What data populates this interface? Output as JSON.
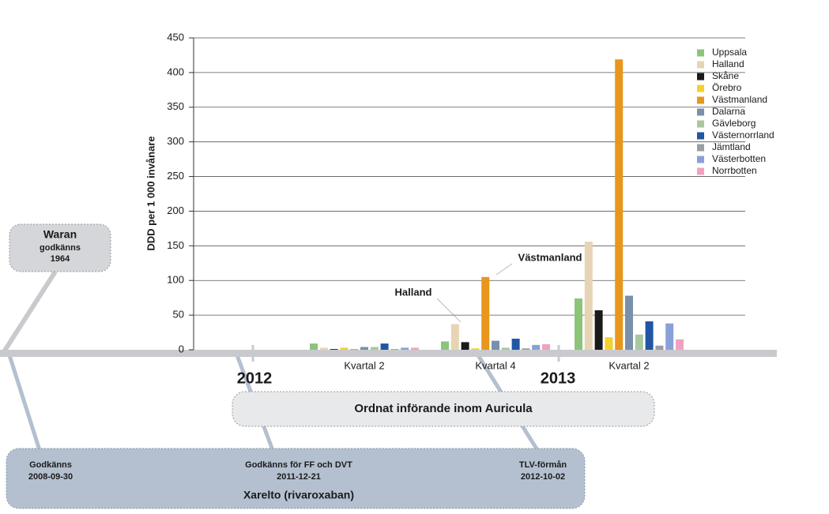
{
  "chart_data": {
    "type": "bar",
    "y_label": "DDD per 1 000 invånare",
    "categories": [
      "Kvartal 2",
      "Kvartal 4",
      "Kvartal 2"
    ],
    "series": [
      {
        "name": "Uppsala",
        "color": "#8cc47a",
        "values": [
          9,
          12,
          74
        ]
      },
      {
        "name": "Halland",
        "color": "#e6d4b4",
        "values": [
          3,
          37,
          156
        ]
      },
      {
        "name": "Skåne",
        "color": "#1a1a1a",
        "values": [
          1,
          11,
          57
        ]
      },
      {
        "name": "Örebro",
        "color": "#f4d030",
        "values": [
          3,
          2,
          18
        ]
      },
      {
        "name": "Västmanland",
        "color": "#e8961c",
        "values": [
          1,
          105,
          419
        ]
      },
      {
        "name": "Dalarna",
        "color": "#7990aa",
        "values": [
          4,
          13,
          78
        ]
      },
      {
        "name": "Gävleborg",
        "color": "#a8c8a0",
        "values": [
          4,
          3,
          22
        ]
      },
      {
        "name": "Västernorrland",
        "color": "#2156a5",
        "values": [
          9,
          16,
          41
        ]
      },
      {
        "name": "Jämtland",
        "color": "#9a9ea4",
        "values": [
          1,
          2,
          6
        ]
      },
      {
        "name": "Västerbotten",
        "color": "#8aa0d8",
        "values": [
          3,
          7,
          38
        ]
      },
      {
        "name": "Norrbotten",
        "color": "#f4a0c0",
        "values": [
          3,
          8,
          15
        ]
      }
    ],
    "ylim": [
      0,
      450
    ],
    "yticks": [
      0,
      50,
      100,
      150,
      200,
      250,
      300,
      350,
      400,
      450
    ],
    "grid": true,
    "annotations": [
      "Halland",
      "Västmanland"
    ]
  },
  "timeline": {
    "years": [
      "2012",
      "2013"
    ],
    "waran": [
      "Waran",
      "godkänns",
      "1964"
    ],
    "auricula": "Ordnat införande inom Auricula",
    "xarelto": {
      "title": "Xarelto  (rivaroxaban)",
      "events": [
        {
          "label": "Godkänns",
          "date": "2008-09-30"
        },
        {
          "label": "Godkänns för FF och DVT",
          "date": "2011-12-21"
        },
        {
          "label": "TLV-förmån",
          "date": "2012-10-02"
        }
      ]
    }
  }
}
